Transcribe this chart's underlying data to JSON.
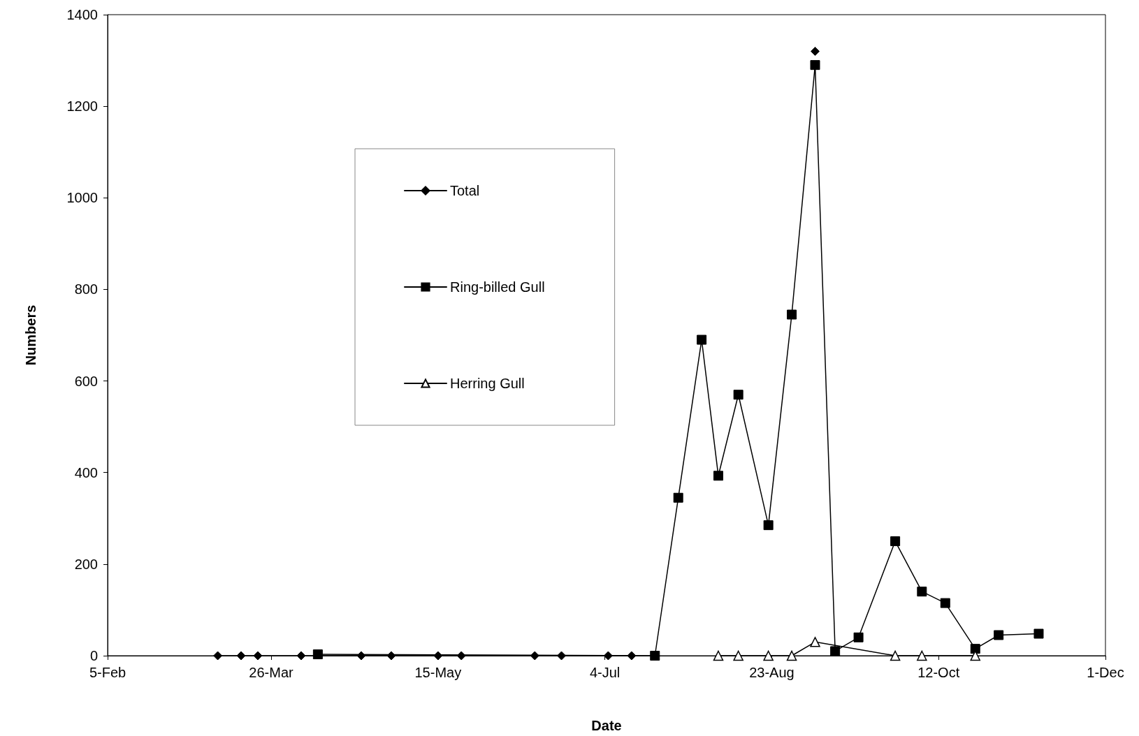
{
  "chart_data": {
    "type": "line",
    "xlabel": "Date",
    "ylabel": "Numbers",
    "xlim": [
      "--02-05",
      "--12-01"
    ],
    "xticks": [
      {
        "value": "--02-05",
        "label": "5-Feb"
      },
      {
        "value": "--03-26",
        "label": "26-Mar"
      },
      {
        "value": "--05-15",
        "label": "15-May"
      },
      {
        "value": "--07-04",
        "label": "4-Jul"
      },
      {
        "value": "--08-23",
        "label": "23-Aug"
      },
      {
        "value": "--10-12",
        "label": "12-Oct"
      },
      {
        "value": "--12-01",
        "label": "1-Dec"
      }
    ],
    "ylim": [
      0,
      1400
    ],
    "yticks": [
      0,
      200,
      400,
      600,
      800,
      1000,
      1200,
      1400
    ],
    "grid": false,
    "legend": "top left",
    "line_style": "solid",
    "series": [
      {
        "name": "Total",
        "color": "#000000",
        "marker": "diamond",
        "x": [
          "--03-10",
          "--03-17",
          "--03-22",
          "--04-04",
          "--04-22",
          "--05-01",
          "--05-15",
          "--05-22",
          "--06-13",
          "--06-21",
          "--07-05",
          "--07-12",
          "--08-29",
          "--09-05"
        ],
        "values": [
          0,
          0,
          0,
          0,
          0,
          0,
          0,
          0,
          0,
          0,
          0,
          0,
          null,
          1320
        ]
      },
      {
        "name": "Ring-billed Gull",
        "color": "#000000",
        "marker": "square",
        "x": [
          "--04-09",
          "--07-19",
          "--07-26",
          "--08-02",
          "--08-07",
          "--08-13",
          "--08-22",
          "--08-29",
          "--09-05",
          "--09-11",
          "--09-18",
          "--09-29",
          "--10-07",
          "--10-14",
          "--10-23",
          "--10-30",
          "--11-11"
        ],
        "values": [
          3,
          0,
          345,
          690,
          393,
          570,
          285,
          745,
          1290,
          10,
          40,
          250,
          140,
          115,
          15,
          45,
          48
        ]
      },
      {
        "name": "Herring Gull",
        "color": "#000000",
        "marker": "triangle",
        "x": [
          "--08-07",
          "--08-13",
          "--08-22",
          "--08-29",
          "--09-05",
          "--09-29",
          "--10-07",
          "--10-23"
        ],
        "values": [
          0,
          0,
          0,
          0,
          30,
          0,
          0,
          0
        ]
      }
    ]
  }
}
